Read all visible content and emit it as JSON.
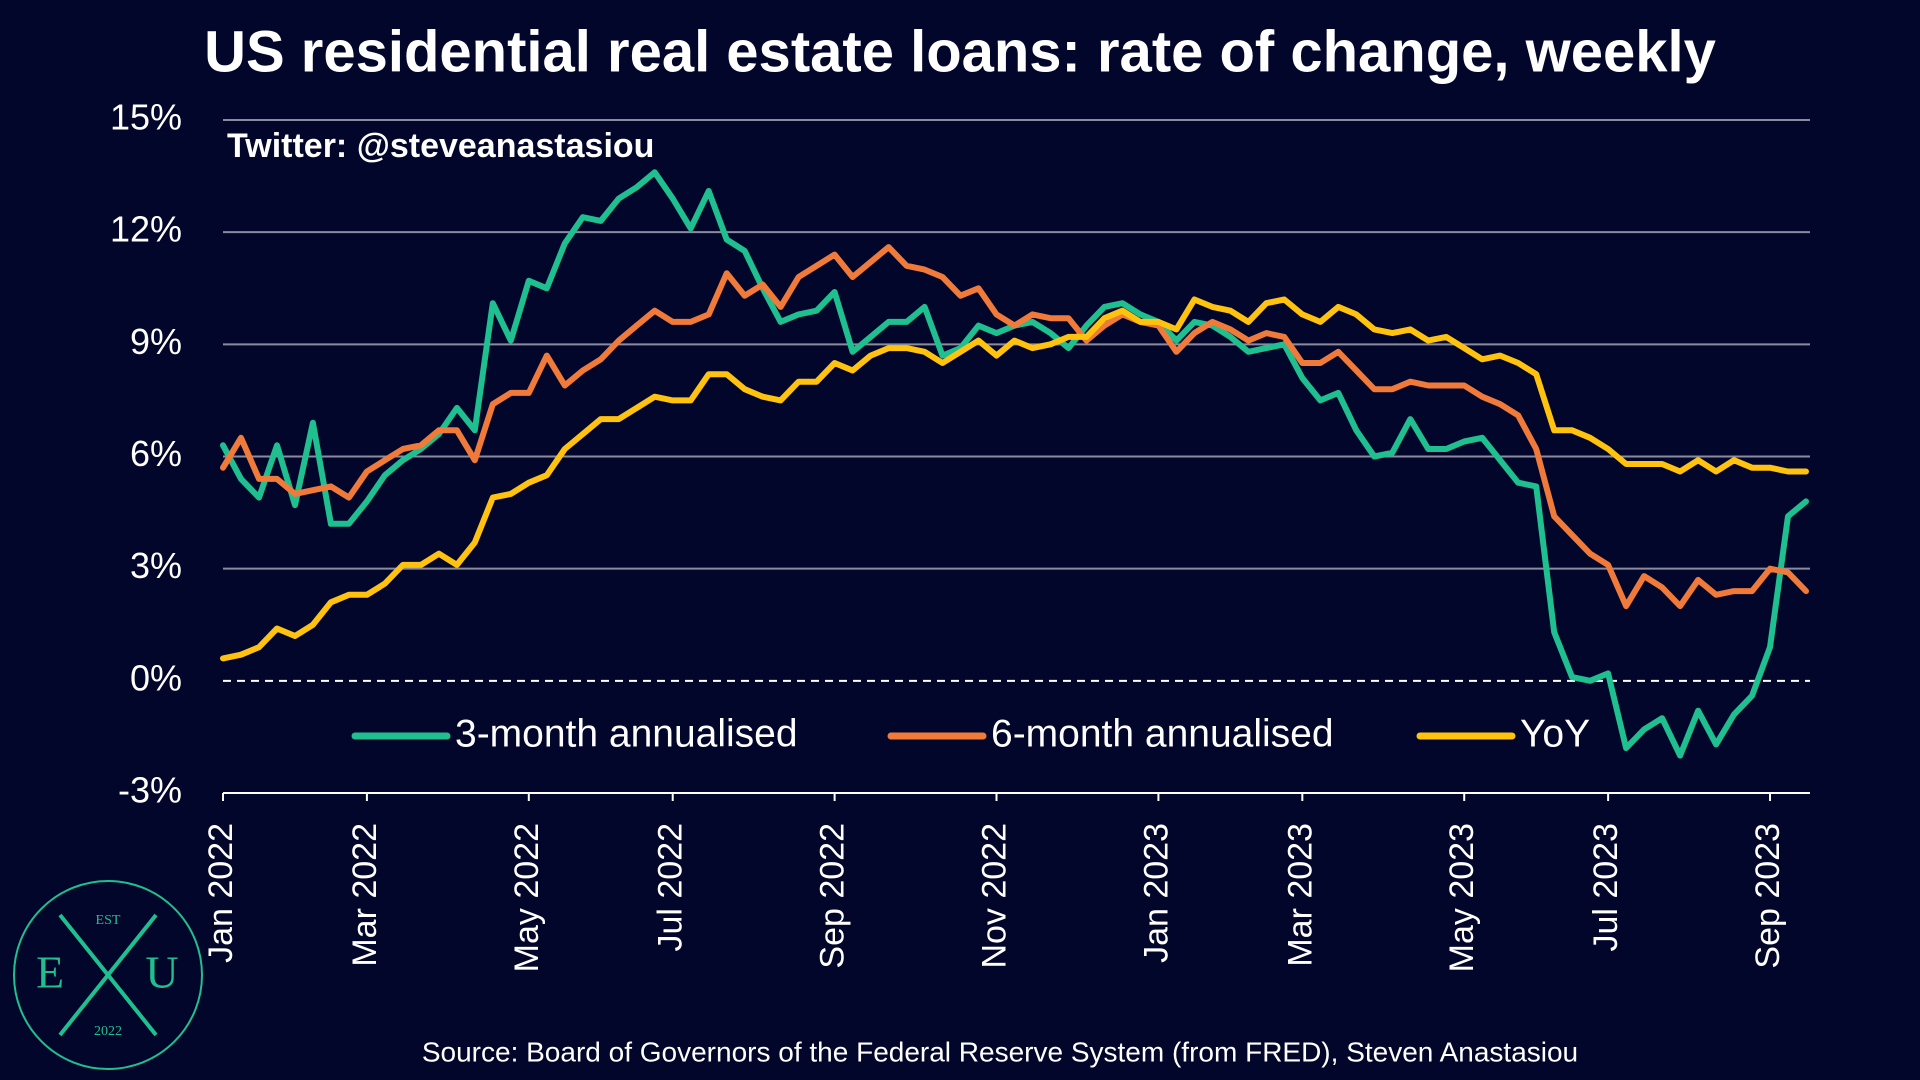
{
  "chart_data": {
    "type": "line",
    "title": "US residential real estate loans: rate of change, weekly",
    "annotation": "Twitter: @steveanastasiou",
    "source": "Source: Board of Governors of the Federal Reserve System (from FRED), Steven Anastasiou",
    "logo": {
      "top": "EST",
      "left": "E",
      "right": "U",
      "bottom": "2022"
    },
    "categories": [
      "Jan 2022",
      null,
      null,
      null,
      null,
      null,
      null,
      null,
      "Mar 2022",
      null,
      null,
      null,
      null,
      null,
      null,
      null,
      null,
      "May 2022",
      null,
      null,
      null,
      null,
      null,
      null,
      null,
      "Jul 2022",
      null,
      null,
      null,
      null,
      null,
      null,
      null,
      null,
      "Sep 2022",
      null,
      null,
      null,
      null,
      null,
      null,
      null,
      null,
      "Nov 2022",
      null,
      null,
      null,
      null,
      null,
      null,
      null,
      null,
      "Jan 2023",
      null,
      null,
      null,
      null,
      null,
      null,
      null,
      "Mar 2023",
      null,
      null,
      null,
      null,
      null,
      null,
      null,
      null,
      "May 2023",
      null,
      null,
      null,
      null,
      null,
      null,
      null,
      "Jul 2023",
      null,
      null,
      null,
      null,
      null,
      null,
      null,
      null,
      "Sep 2023",
      null,
      null
    ],
    "series": [
      {
        "name": "3-month annualised",
        "color": "#1fbf8f",
        "values": [
          6.3,
          5.4,
          4.9,
          6.3,
          4.7,
          6.9,
          4.2,
          4.2,
          4.8,
          5.5,
          5.9,
          6.2,
          6.6,
          7.3,
          6.7,
          10.1,
          9.1,
          10.7,
          10.5,
          11.7,
          12.4,
          12.3,
          12.9,
          13.2,
          13.6,
          12.9,
          12.1,
          13.1,
          11.8,
          11.5,
          10.5,
          9.6,
          9.8,
          9.9,
          10.4,
          8.8,
          9.2,
          9.6,
          9.6,
          10.0,
          8.7,
          8.9,
          9.5,
          9.3,
          9.5,
          9.6,
          9.3,
          8.9,
          9.5,
          10.0,
          10.1,
          9.8,
          9.6,
          9.1,
          9.6,
          9.5,
          9.2,
          8.8,
          8.9,
          9.0,
          8.1,
          7.5,
          7.7,
          6.7,
          6.0,
          6.1,
          7.0,
          6.2,
          6.2,
          6.4,
          6.5,
          5.9,
          5.3,
          5.2,
          1.3,
          0.1,
          0.0,
          0.2,
          -1.8,
          -1.3,
          -1.0,
          -2.0,
          -0.8,
          -1.7,
          -0.9,
          -0.4,
          0.9,
          4.4,
          4.8
        ]
      },
      {
        "name": "6-month annualised",
        "color": "#f07a3a",
        "values": [
          5.7,
          6.5,
          5.4,
          5.4,
          5.0,
          5.1,
          5.2,
          4.9,
          5.6,
          5.9,
          6.2,
          6.3,
          6.7,
          6.7,
          5.9,
          7.4,
          7.7,
          7.7,
          8.7,
          7.9,
          8.3,
          8.6,
          9.1,
          9.5,
          9.9,
          9.6,
          9.6,
          9.8,
          10.9,
          10.3,
          10.6,
          10.0,
          10.8,
          11.1,
          11.4,
          10.8,
          11.2,
          11.6,
          11.1,
          11.0,
          10.8,
          10.3,
          10.5,
          9.8,
          9.5,
          9.8,
          9.7,
          9.7,
          9.1,
          9.5,
          9.8,
          9.6,
          9.5,
          8.8,
          9.3,
          9.6,
          9.4,
          9.1,
          9.3,
          9.2,
          8.5,
          8.5,
          8.8,
          8.3,
          7.8,
          7.8,
          8.0,
          7.9,
          7.9,
          7.9,
          7.6,
          7.4,
          7.1,
          6.2,
          4.4,
          3.9,
          3.4,
          3.1,
          2.0,
          2.8,
          2.5,
          2.0,
          2.7,
          2.3,
          2.4,
          2.4,
          3.0,
          2.9,
          2.4
        ]
      },
      {
        "name": "YoY",
        "color": "#ffc20e",
        "values": [
          0.6,
          0.7,
          0.9,
          1.4,
          1.2,
          1.5,
          2.1,
          2.3,
          2.3,
          2.6,
          3.1,
          3.1,
          3.4,
          3.1,
          3.7,
          4.9,
          5.0,
          5.3,
          5.5,
          6.2,
          6.6,
          7.0,
          7.0,
          7.3,
          7.6,
          7.5,
          7.5,
          8.2,
          8.2,
          7.8,
          7.6,
          7.5,
          8.0,
          8.0,
          8.5,
          8.3,
          8.7,
          8.9,
          8.9,
          8.8,
          8.5,
          8.8,
          9.1,
          8.7,
          9.1,
          8.9,
          9.0,
          9.2,
          9.2,
          9.7,
          9.9,
          9.6,
          9.6,
          9.4,
          10.2,
          10.0,
          9.9,
          9.6,
          10.1,
          10.2,
          9.8,
          9.6,
          10.0,
          9.8,
          9.4,
          9.3,
          9.4,
          9.1,
          9.2,
          8.9,
          8.6,
          8.7,
          8.5,
          8.2,
          6.7,
          6.7,
          6.5,
          6.2,
          5.8,
          5.8,
          5.8,
          5.6,
          5.9,
          5.6,
          5.9,
          5.7,
          5.7,
          5.6,
          5.6
        ]
      }
    ],
    "ylim": [
      -3,
      15
    ],
    "yticks": [
      {
        "value": -3,
        "label": "-3%"
      },
      {
        "value": 0,
        "label": "0%"
      },
      {
        "value": 3,
        "label": "3%"
      },
      {
        "value": 6,
        "label": "6%"
      },
      {
        "value": 9,
        "label": "9%"
      },
      {
        "value": 12,
        "label": "12%"
      },
      {
        "value": 15,
        "label": "15%"
      }
    ],
    "grid": true,
    "legend": "bottom"
  }
}
